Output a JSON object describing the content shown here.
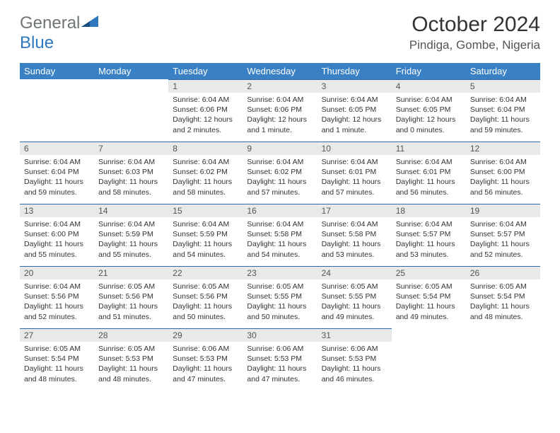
{
  "logo": {
    "text1": "General",
    "text2": "Blue"
  },
  "title": "October 2024",
  "location": "Pindiga, Gombe, Nigeria",
  "weekdays": [
    "Sunday",
    "Monday",
    "Tuesday",
    "Wednesday",
    "Thursday",
    "Friday",
    "Saturday"
  ],
  "colors": {
    "header_bg": "#3a80c4",
    "daynum_bg": "#e7e9ea",
    "row_border": "#2d6aa3",
    "logo_gray": "#6f7577",
    "logo_blue": "#2f78bd"
  },
  "weeks": [
    [
      {
        "n": "",
        "sunrise": "",
        "sunset": "",
        "daylight": ""
      },
      {
        "n": "",
        "sunrise": "",
        "sunset": "",
        "daylight": ""
      },
      {
        "n": "1",
        "sunrise": "Sunrise: 6:04 AM",
        "sunset": "Sunset: 6:06 PM",
        "daylight": "Daylight: 12 hours and 2 minutes."
      },
      {
        "n": "2",
        "sunrise": "Sunrise: 6:04 AM",
        "sunset": "Sunset: 6:06 PM",
        "daylight": "Daylight: 12 hours and 1 minute."
      },
      {
        "n": "3",
        "sunrise": "Sunrise: 6:04 AM",
        "sunset": "Sunset: 6:05 PM",
        "daylight": "Daylight: 12 hours and 1 minute."
      },
      {
        "n": "4",
        "sunrise": "Sunrise: 6:04 AM",
        "sunset": "Sunset: 6:05 PM",
        "daylight": "Daylight: 12 hours and 0 minutes."
      },
      {
        "n": "5",
        "sunrise": "Sunrise: 6:04 AM",
        "sunset": "Sunset: 6:04 PM",
        "daylight": "Daylight: 11 hours and 59 minutes."
      }
    ],
    [
      {
        "n": "6",
        "sunrise": "Sunrise: 6:04 AM",
        "sunset": "Sunset: 6:04 PM",
        "daylight": "Daylight: 11 hours and 59 minutes."
      },
      {
        "n": "7",
        "sunrise": "Sunrise: 6:04 AM",
        "sunset": "Sunset: 6:03 PM",
        "daylight": "Daylight: 11 hours and 58 minutes."
      },
      {
        "n": "8",
        "sunrise": "Sunrise: 6:04 AM",
        "sunset": "Sunset: 6:02 PM",
        "daylight": "Daylight: 11 hours and 58 minutes."
      },
      {
        "n": "9",
        "sunrise": "Sunrise: 6:04 AM",
        "sunset": "Sunset: 6:02 PM",
        "daylight": "Daylight: 11 hours and 57 minutes."
      },
      {
        "n": "10",
        "sunrise": "Sunrise: 6:04 AM",
        "sunset": "Sunset: 6:01 PM",
        "daylight": "Daylight: 11 hours and 57 minutes."
      },
      {
        "n": "11",
        "sunrise": "Sunrise: 6:04 AM",
        "sunset": "Sunset: 6:01 PM",
        "daylight": "Daylight: 11 hours and 56 minutes."
      },
      {
        "n": "12",
        "sunrise": "Sunrise: 6:04 AM",
        "sunset": "Sunset: 6:00 PM",
        "daylight": "Daylight: 11 hours and 56 minutes."
      }
    ],
    [
      {
        "n": "13",
        "sunrise": "Sunrise: 6:04 AM",
        "sunset": "Sunset: 6:00 PM",
        "daylight": "Daylight: 11 hours and 55 minutes."
      },
      {
        "n": "14",
        "sunrise": "Sunrise: 6:04 AM",
        "sunset": "Sunset: 5:59 PM",
        "daylight": "Daylight: 11 hours and 55 minutes."
      },
      {
        "n": "15",
        "sunrise": "Sunrise: 6:04 AM",
        "sunset": "Sunset: 5:59 PM",
        "daylight": "Daylight: 11 hours and 54 minutes."
      },
      {
        "n": "16",
        "sunrise": "Sunrise: 6:04 AM",
        "sunset": "Sunset: 5:58 PM",
        "daylight": "Daylight: 11 hours and 54 minutes."
      },
      {
        "n": "17",
        "sunrise": "Sunrise: 6:04 AM",
        "sunset": "Sunset: 5:58 PM",
        "daylight": "Daylight: 11 hours and 53 minutes."
      },
      {
        "n": "18",
        "sunrise": "Sunrise: 6:04 AM",
        "sunset": "Sunset: 5:57 PM",
        "daylight": "Daylight: 11 hours and 53 minutes."
      },
      {
        "n": "19",
        "sunrise": "Sunrise: 6:04 AM",
        "sunset": "Sunset: 5:57 PM",
        "daylight": "Daylight: 11 hours and 52 minutes."
      }
    ],
    [
      {
        "n": "20",
        "sunrise": "Sunrise: 6:04 AM",
        "sunset": "Sunset: 5:56 PM",
        "daylight": "Daylight: 11 hours and 52 minutes."
      },
      {
        "n": "21",
        "sunrise": "Sunrise: 6:05 AM",
        "sunset": "Sunset: 5:56 PM",
        "daylight": "Daylight: 11 hours and 51 minutes."
      },
      {
        "n": "22",
        "sunrise": "Sunrise: 6:05 AM",
        "sunset": "Sunset: 5:56 PM",
        "daylight": "Daylight: 11 hours and 50 minutes."
      },
      {
        "n": "23",
        "sunrise": "Sunrise: 6:05 AM",
        "sunset": "Sunset: 5:55 PM",
        "daylight": "Daylight: 11 hours and 50 minutes."
      },
      {
        "n": "24",
        "sunrise": "Sunrise: 6:05 AM",
        "sunset": "Sunset: 5:55 PM",
        "daylight": "Daylight: 11 hours and 49 minutes."
      },
      {
        "n": "25",
        "sunrise": "Sunrise: 6:05 AM",
        "sunset": "Sunset: 5:54 PM",
        "daylight": "Daylight: 11 hours and 49 minutes."
      },
      {
        "n": "26",
        "sunrise": "Sunrise: 6:05 AM",
        "sunset": "Sunset: 5:54 PM",
        "daylight": "Daylight: 11 hours and 48 minutes."
      }
    ],
    [
      {
        "n": "27",
        "sunrise": "Sunrise: 6:05 AM",
        "sunset": "Sunset: 5:54 PM",
        "daylight": "Daylight: 11 hours and 48 minutes."
      },
      {
        "n": "28",
        "sunrise": "Sunrise: 6:05 AM",
        "sunset": "Sunset: 5:53 PM",
        "daylight": "Daylight: 11 hours and 48 minutes."
      },
      {
        "n": "29",
        "sunrise": "Sunrise: 6:06 AM",
        "sunset": "Sunset: 5:53 PM",
        "daylight": "Daylight: 11 hours and 47 minutes."
      },
      {
        "n": "30",
        "sunrise": "Sunrise: 6:06 AM",
        "sunset": "Sunset: 5:53 PM",
        "daylight": "Daylight: 11 hours and 47 minutes."
      },
      {
        "n": "31",
        "sunrise": "Sunrise: 6:06 AM",
        "sunset": "Sunset: 5:53 PM",
        "daylight": "Daylight: 11 hours and 46 minutes."
      },
      {
        "n": "",
        "sunrise": "",
        "sunset": "",
        "daylight": ""
      },
      {
        "n": "",
        "sunrise": "",
        "sunset": "",
        "daylight": ""
      }
    ]
  ]
}
